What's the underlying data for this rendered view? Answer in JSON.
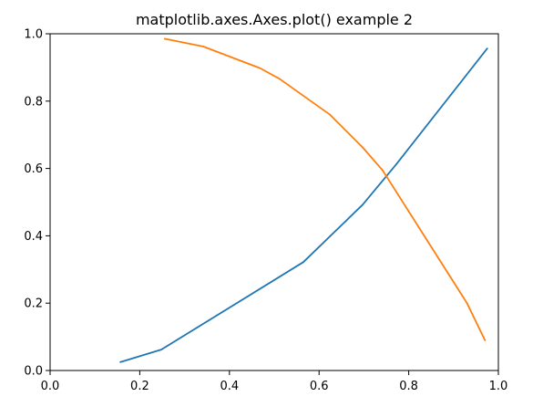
{
  "chart_data": {
    "type": "line",
    "title": "matplotlib.axes.Axes.plot() example 2",
    "xlabel": "",
    "ylabel": "",
    "xlim": [
      0.0,
      1.0
    ],
    "ylim": [
      0.0,
      1.0
    ],
    "x_ticks": [
      "0.0",
      "0.2",
      "0.4",
      "0.6",
      "0.8",
      "1.0"
    ],
    "y_ticks": [
      "0.0",
      "0.2",
      "0.4",
      "0.6",
      "0.8",
      "1.0"
    ],
    "grid": false,
    "legend": "none",
    "series": [
      {
        "color": "#1f77b4",
        "points": [
          {
            "x": 0.157,
            "y": 0.025
          },
          {
            "x": 0.248,
            "y": 0.062
          },
          {
            "x": 0.565,
            "y": 0.322
          },
          {
            "x": 0.697,
            "y": 0.492
          },
          {
            "x": 0.772,
            "y": 0.612
          },
          {
            "x": 0.975,
            "y": 0.956
          }
        ]
      },
      {
        "color": "#ff7f0e",
        "points": [
          {
            "x": 0.256,
            "y": 0.985
          },
          {
            "x": 0.342,
            "y": 0.962
          },
          {
            "x": 0.468,
            "y": 0.898
          },
          {
            "x": 0.512,
            "y": 0.866
          },
          {
            "x": 0.624,
            "y": 0.76
          },
          {
            "x": 0.697,
            "y": 0.663
          },
          {
            "x": 0.742,
            "y": 0.594
          },
          {
            "x": 0.93,
            "y": 0.2
          },
          {
            "x": 0.97,
            "y": 0.09
          }
        ]
      }
    ]
  }
}
